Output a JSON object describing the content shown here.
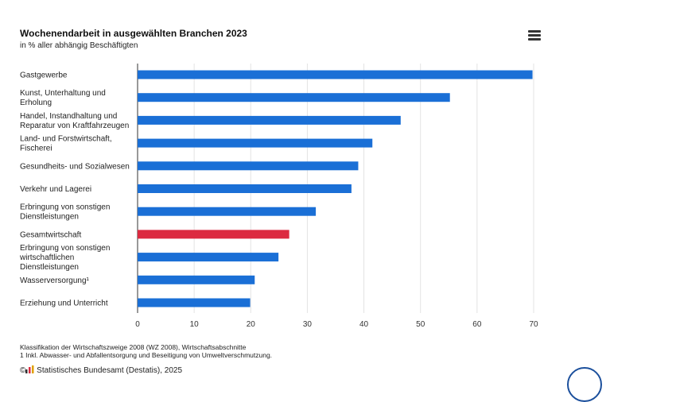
{
  "header": {
    "title": "Wochenendarbeit in ausgewählten Branchen 2023",
    "subtitle": "in % aller abhängig Beschäftigten"
  },
  "menu": {
    "icon": "hamburger-menu-icon"
  },
  "colors": {
    "bar": "#1a6fd6",
    "highlight": "#dc2a40",
    "grid": "#e3e3e3",
    "axis": "#333333"
  },
  "chart_data": {
    "type": "bar",
    "orientation": "horizontal",
    "title": "Wochenendarbeit in ausgewählten Branchen 2023",
    "subtitle": "in % aller abhängig Beschäftigten",
    "categories": [
      "Gastgewerbe",
      "Kunst, Unterhaltung und Erholung",
      "Handel, Instandhaltung und Reparatur von Kraftfahrzeugen",
      "Land- und Forstwirtschaft, Fischerei",
      "Gesundheits- und Sozialwesen",
      "Verkehr und Lagerei",
      "Erbringung von sonstigen Dienstleistungen",
      "Gesamtwirtschaft",
      "Erbringung von sonstigen wirtschaftlichen Dienstleistungen",
      "Wasserversorgung¹",
      "Erziehung und Unterricht"
    ],
    "category_lines": [
      [
        "Gastgewerbe"
      ],
      [
        "Kunst, Unterhaltung und",
        "Erholung"
      ],
      [
        "Handel, Instandhaltung und",
        "Reparatur von Kraftfahrzeugen"
      ],
      [
        "Land- und Forstwirtschaft,",
        "Fischerei"
      ],
      [
        "Gesundheits- und Sozialwesen"
      ],
      [
        "Verkehr und Lagerei"
      ],
      [
        "Erbringung von sonstigen",
        "Dienstleistungen"
      ],
      [
        "Gesamtwirtschaft"
      ],
      [
        "Erbringung von sonstigen",
        "wirtschaftlichen",
        "Dienstleistungen"
      ],
      [
        "Wasserversorgung¹"
      ],
      [
        "Erziehung und Unterricht"
      ]
    ],
    "values": [
      69.8,
      55.2,
      46.5,
      41.5,
      39.0,
      37.8,
      31.5,
      26.8,
      24.9,
      20.7,
      19.9
    ],
    "highlight_index": 7,
    "xlim": [
      0,
      70
    ],
    "xticks": [
      0,
      10,
      20,
      30,
      40,
      50,
      60,
      70
    ],
    "grid": true,
    "xlabel": "",
    "ylabel": ""
  },
  "footnotes": {
    "line1": "Klassifikation der Wirtschaftszweige 2008 (WZ 2008), Wirtschaftsabschnitte",
    "line2": "1 Inkl. Abwasser- und Abfallentsorgung und Beseitigung von Umweltverschmutzung."
  },
  "credit": {
    "text": "Statistisches Bundesamt (Destatis), 2025",
    "copyright": "©"
  }
}
